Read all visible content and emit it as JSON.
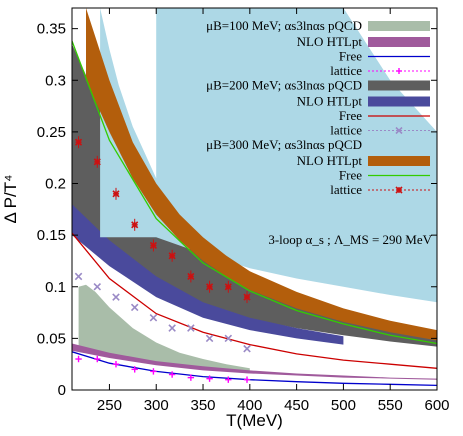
{
  "chart_data": {
    "type": "line",
    "xlabel": "T(MeV)",
    "ylabel": "Δ P/T⁴",
    "xlim": [
      210,
      600
    ],
    "ylim": [
      0,
      0.37
    ],
    "x_ticks": [
      250,
      300,
      350,
      400,
      450,
      500,
      550,
      600
    ],
    "x_tick_labels": [
      "250",
      "300",
      "350",
      "400",
      "450",
      "500",
      "550",
      "600"
    ],
    "y_ticks": [
      0,
      0.05,
      0.1,
      0.15,
      0.2,
      0.25,
      0.3,
      0.35
    ],
    "y_tick_labels": [
      "0",
      "0.05",
      "0.1",
      "0.15",
      "0.2",
      "0.25",
      "0.3",
      "0.35"
    ],
    "annotation": "3-loop α_s ; Λ_MS = 290 MeV",
    "legend_groups": [
      {
        "label": "μB=100 MeV; αs3lnαs pQCD"
      },
      {
        "label": "μB=200 MeV; αs3lnαs pQCD"
      },
      {
        "label": "μB=300 MeV; αs3lnαs pQCD"
      }
    ],
    "series": [
      {
        "name": "μB=100 MeV; αs3lnαs pQCD",
        "kind": "band",
        "color": "#a9bda9",
        "x": [
          217,
          225,
          235,
          250,
          275,
          300,
          325,
          350,
          375,
          400
        ],
        "upper": [
          0.1,
          0.102,
          0.095,
          0.08,
          0.06,
          0.046,
          0.036,
          0.03,
          0.025,
          0.021
        ],
        "lower": [
          0.04,
          0.038,
          0.036,
          0.033,
          0.029,
          0.025,
          0.022,
          0.02,
          0.018,
          0.016
        ]
      },
      {
        "name": "NLO HTLpt",
        "kind": "band",
        "color": "#a05a9c",
        "x": [
          210,
          250,
          300,
          350,
          400,
          450,
          500,
          550,
          600
        ],
        "upper": [
          0.045,
          0.036,
          0.028,
          0.023,
          0.019,
          0.016,
          0.014,
          0.012,
          0.011
        ],
        "lower": [
          0.038,
          0.031,
          0.024,
          0.019,
          0.016,
          0.014,
          0.012,
          0.011,
          0.01
        ]
      },
      {
        "name": "Free",
        "kind": "line",
        "color": "#0000cc",
        "x": [
          210,
          250,
          300,
          350,
          400,
          450,
          500,
          550,
          600
        ],
        "y": [
          0.037,
          0.026,
          0.018,
          0.013,
          0.01,
          0.008,
          0.0065,
          0.0055,
          0.0045
        ]
      },
      {
        "name": "lattice",
        "kind": "points",
        "color": "#ff00ff",
        "marker": "plus",
        "x": [
          217,
          237,
          257,
          277,
          297,
          317,
          337,
          357,
          377,
          397
        ],
        "y": [
          0.03,
          0.03,
          0.025,
          0.02,
          0.018,
          0.015,
          0.012,
          0.011,
          0.01,
          0.01
        ]
      },
      {
        "name": "μB=200 MeV; αs3lnαs pQCD",
        "kind": "band",
        "color": "#5e5e5e",
        "x": [
          210,
          225,
          250,
          275,
          300,
          325,
          350,
          375,
          400,
          450,
          500,
          550,
          600
        ],
        "upper": [
          0.335,
          0.305,
          0.255,
          0.215,
          0.185,
          0.16,
          0.14,
          0.124,
          0.11,
          0.09,
          0.076,
          0.065,
          0.056
        ],
        "lower": [
          0.155,
          0.147,
          0.13,
          0.113,
          0.1,
          0.09,
          0.082,
          0.075,
          0.069,
          0.06,
          0.053,
          0.047,
          0.042
        ]
      },
      {
        "name": "NLO HTLpt",
        "kind": "band",
        "color": "#4a4a9c",
        "x": [
          210,
          250,
          300,
          350,
          400,
          450,
          500
        ],
        "upper": [
          0.18,
          0.145,
          0.11,
          0.085,
          0.07,
          0.06,
          0.052
        ],
        "lower": [
          0.15,
          0.12,
          0.09,
          0.07,
          0.058,
          0.05,
          0.044
        ]
      },
      {
        "name": "Free",
        "kind": "line",
        "color": "#cc0000",
        "x": [
          210,
          250,
          300,
          350,
          400,
          450,
          500,
          550,
          600
        ],
        "y": [
          0.152,
          0.108,
          0.074,
          0.056,
          0.044,
          0.035,
          0.029,
          0.025,
          0.021
        ]
      },
      {
        "name": "lattice",
        "kind": "points",
        "color": "#9a8ac6",
        "marker": "cross",
        "x": [
          217,
          237,
          257,
          277,
          297,
          317,
          337,
          357,
          377,
          397
        ],
        "y": [
          0.11,
          0.1,
          0.09,
          0.08,
          0.07,
          0.06,
          0.06,
          0.05,
          0.05,
          0.04
        ]
      },
      {
        "name": "μB=300 MeV; αs3lnαs pQCD",
        "kind": "band",
        "color": "#add8e6",
        "x": [
          300,
          325,
          350,
          375,
          400,
          450,
          500,
          550,
          600
        ],
        "upper": [
          0.37,
          0.37,
          0.37,
          0.37,
          0.37,
          0.37,
          0.37,
          0.3,
          0.25
        ],
        "lower": [
          0.148,
          0.14,
          0.132,
          0.125,
          0.118,
          0.108,
          0.1,
          0.092,
          0.085
        ],
        "left_edge": [
          [
            240,
            0.37
          ],
          [
            250,
            0.33
          ],
          [
            260,
            0.295
          ],
          [
            275,
            0.255
          ],
          [
            290,
            0.225
          ],
          [
            300,
            0.205
          ]
        ]
      },
      {
        "name": "NLO HTLpt",
        "kind": "band",
        "color": "#b35e0c",
        "x": [
          225,
          250,
          275,
          300,
          325,
          350,
          375,
          400,
          450,
          500,
          550,
          600
        ],
        "upper": [
          0.37,
          0.3,
          0.24,
          0.2,
          0.17,
          0.148,
          0.13,
          0.115,
          0.095,
          0.079,
          0.067,
          0.058
        ],
        "lower": [
          0.3,
          0.25,
          0.205,
          0.17,
          0.145,
          0.125,
          0.11,
          0.097,
          0.079,
          0.066,
          0.056,
          0.048
        ]
      },
      {
        "name": "Free",
        "kind": "line",
        "color": "#33cc00",
        "x": [
          210,
          250,
          300,
          350,
          400,
          450,
          500,
          550,
          600
        ],
        "y": [
          0.338,
          0.242,
          0.166,
          0.123,
          0.096,
          0.077,
          0.064,
          0.053,
          0.045
        ]
      },
      {
        "name": "lattice",
        "kind": "points",
        "color": "#cc1111",
        "marker": "star",
        "x": [
          217,
          237,
          257,
          277,
          297,
          317,
          337,
          357,
          377,
          397
        ],
        "y": [
          0.24,
          0.221,
          0.19,
          0.16,
          0.14,
          0.13,
          0.11,
          0.1,
          0.1,
          0.09
        ]
      }
    ],
    "legend": [
      {
        "label": "μB=100 MeV; αs3lnαs pQCD",
        "kind": "band",
        "color": "#a9bda9"
      },
      {
        "label": "NLO HTLpt",
        "kind": "band",
        "color": "#a05a9c"
      },
      {
        "label": "Free",
        "kind": "line",
        "color": "#0000cc"
      },
      {
        "label": "lattice",
        "kind": "points",
        "color": "#ff00ff",
        "marker": "plus"
      },
      {
        "label": "μB=200 MeV; αs3lnαs pQCD",
        "kind": "band",
        "color": "#5e5e5e"
      },
      {
        "label": "NLO HTLpt",
        "kind": "band",
        "color": "#4a4a9c"
      },
      {
        "label": "Free",
        "kind": "line",
        "color": "#cc0000"
      },
      {
        "label": "lattice",
        "kind": "points",
        "color": "#9a8ac6",
        "marker": "cross"
      },
      {
        "label": "μB=300 MeV; αs3lnαs pQCD",
        "kind": "band",
        "color": "#add8e6"
      },
      {
        "label": "NLO HTLpt",
        "kind": "band",
        "color": "#b35e0c"
      },
      {
        "label": "Free",
        "kind": "line",
        "color": "#33cc00"
      },
      {
        "label": "lattice",
        "kind": "points",
        "color": "#cc1111",
        "marker": "star"
      }
    ]
  }
}
